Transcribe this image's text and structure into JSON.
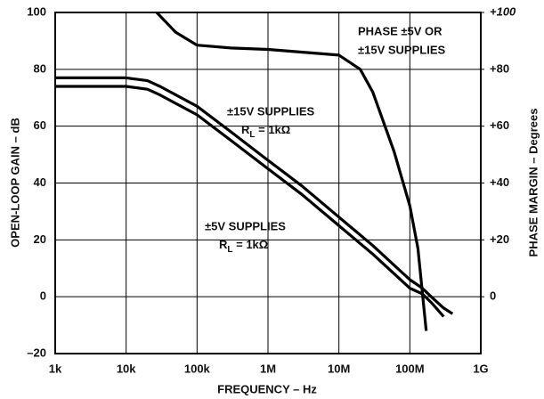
{
  "chart_data": {
    "type": "line",
    "xlabel": "FREQUENCY – Hz",
    "ylabel": "OPEN-LOOP GAIN – dB",
    "y2label": "PHASE MARGIN – Degrees",
    "xscale": "log",
    "xlim": [
      1000,
      1000000000
    ],
    "xticks": [
      {
        "value": 1000,
        "label": "1k"
      },
      {
        "value": 10000,
        "label": "10k"
      },
      {
        "value": 100000,
        "label": "100k"
      },
      {
        "value": 1000000,
        "label": "1M"
      },
      {
        "value": 10000000,
        "label": "10M"
      },
      {
        "value": 100000000,
        "label": "100M"
      },
      {
        "value": 1000000000,
        "label": "1G"
      }
    ],
    "ylim": [
      -20,
      100
    ],
    "yticks": [
      {
        "value": -20,
        "label": "–20"
      },
      0,
      20,
      40,
      60,
      80,
      100
    ],
    "y2lim": [
      -20,
      100
    ],
    "y2ticks": [
      0,
      {
        "value": 20,
        "label": "+20"
      },
      {
        "value": 40,
        "label": "+40"
      },
      {
        "value": 60,
        "label": "+60"
      },
      {
        "value": 80,
        "label": "+80"
      },
      {
        "value": 100,
        "label": "+100"
      }
    ],
    "grid": true,
    "series": [
      {
        "color": "#000000",
        "x": [
          1000,
          3000,
          10000,
          20000,
          30000,
          100000,
          300000,
          1000000,
          3000000,
          10000000,
          30000000,
          100000000,
          150000000,
          200000000,
          300000000,
          400000000
        ],
        "values": [
          77,
          77,
          77,
          76,
          74,
          67,
          58,
          48,
          39,
          28,
          18,
          6,
          3,
          0,
          -4,
          -6
        ]
      },
      {
        "color": "#000000",
        "x": [
          1000,
          3000,
          10000,
          20000,
          30000,
          100000,
          300000,
          1000000,
          3000000,
          10000000,
          30000000,
          100000000,
          150000000,
          200000000,
          300000000
        ],
        "values": [
          74,
          74,
          74,
          73,
          71,
          64,
          55,
          45,
          36,
          25,
          15,
          3,
          1,
          -2,
          -7
        ]
      },
      {
        "color": "#000000",
        "axis": "y2",
        "x": [
          27000,
          50000,
          100000,
          300000,
          1000000,
          10000000,
          20000000,
          30000000,
          60000000,
          100000000,
          130000000,
          170000000
        ],
        "values": [
          100,
          93,
          88.5,
          87.5,
          87,
          85,
          80,
          72,
          51,
          32,
          17,
          -12
        ]
      }
    ],
    "annotations": [
      {
        "lines": [
          "PHASE ±5V OR",
          "±15V SUPPLIES"
        ]
      },
      {
        "lines": [
          "±15V SUPPLIES"
        ],
        "rl": [
          "R",
          "L",
          " = 1kΩ"
        ]
      },
      {
        "lines": [
          "±5V SUPPLIES"
        ],
        "rl": [
          "R",
          "L",
          " = 1kΩ"
        ]
      }
    ]
  }
}
